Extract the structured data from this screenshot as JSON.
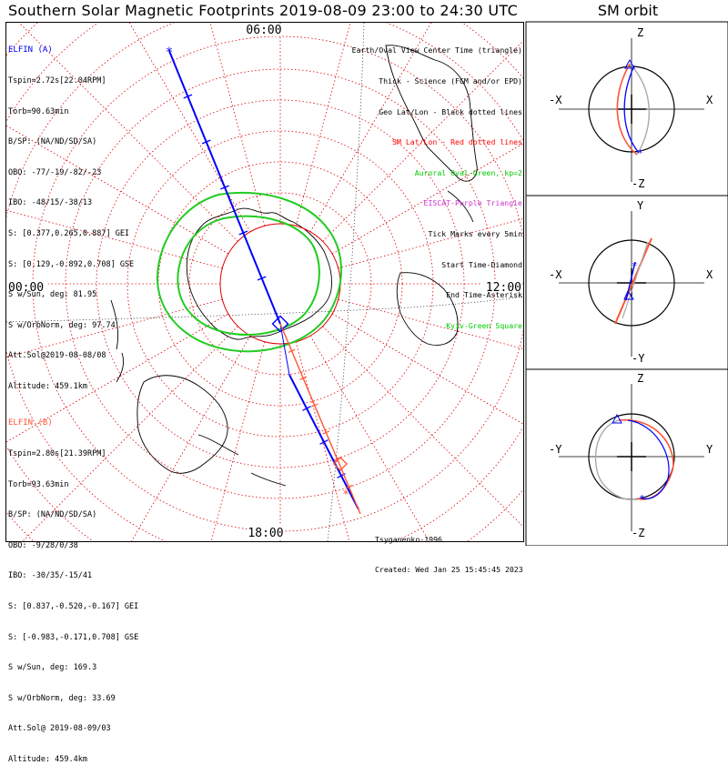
{
  "title": "Southern Solar Magnetic Footprints 2019-08-09 23:00 to 24:30 UTC",
  "orbit_title": "SM orbit",
  "elfin_a": {
    "lines": [
      "ELFIN (A)",
      "Tspin=2.72s[22.04RPM]",
      "Torb=90.63min",
      "B/SP: (NA/ND/SD/SA)",
      "OBO: -77/-19/-82/-23",
      "IBO: -48/15/-38/13",
      "S: [0.377,0.265,0.887] GEI",
      "S: [0.129,-0.892,0.708] GSE",
      "S w/Sun, deg: 81.95",
      "S w/OrbNorm, deg: 97.74",
      "Att.Sol@2019-08-08/08",
      "Altitude: 459.1km"
    ],
    "color": "#0000ff"
  },
  "elfin_b": {
    "lines": [
      "ELFIN (B)",
      "Tspin=2.80s[21.39RPM]",
      "Torb=93.63min",
      "B/SP: (NA/ND/SD/SA)",
      "OBO: -9/28/0/38",
      "IBO: -30/35/-15/41",
      "S: [0.837,-0.520,-0.167] GEI",
      "S: [-0.983,-0.171,0.708] GSE",
      "S w/Sun, deg: 169.3",
      "S w/OrbNorm, deg: 33.69",
      "Att.Sol@ 2019-08-09/03",
      "Altitude: 459.4km"
    ],
    "color": "#ff3300"
  },
  "legend": [
    {
      "text": "Earth/Oval View Center Time (triangle)",
      "color": "#000000"
    },
    {
      "text": "Thick - Science (FGM and/or EPD)",
      "color": "#000000"
    },
    {
      "text": "Geo Lat/Lon - Black dotted lines",
      "color": "#000000"
    },
    {
      "text": "SM Lat/Lon - Red dotted lines",
      "color": "#ff0000"
    },
    {
      "text": "Auroral Oval-Green, kp=2",
      "color": "#00cc00"
    },
    {
      "text": "EISCAT-Purple Triangle",
      "color": "#cc33cc"
    },
    {
      "text": "Tick Marks every 5min",
      "color": "#000000"
    },
    {
      "text": "Start Time-Diamond",
      "color": "#000000"
    },
    {
      "text": "End Time-Asterisk",
      "color": "#000000"
    },
    {
      "text": "Kyiv-Green Square",
      "color": "#00cc00"
    }
  ],
  "footer": {
    "credit": "Tsyganenko-1996",
    "created": "Created: Wed Jan 25 15:45:45 2023"
  },
  "chart_data": {
    "type": "polar map",
    "mlt_labels": {
      "top": "06:00",
      "left": "00:00",
      "right": "12:00",
      "bottom": "18:00"
    },
    "grid": true,
    "tick_interval_min": 5,
    "kp": 2,
    "side_panels": [
      {
        "top": "Z",
        "bottom": "-Z",
        "left": "-X",
        "right": "X"
      },
      {
        "top": "Y",
        "bottom": "-Y",
        "left": "-X",
        "right": "X"
      },
      {
        "top": "Z",
        "bottom": "-Z",
        "left": "-Y",
        "right": "Y"
      }
    ]
  }
}
